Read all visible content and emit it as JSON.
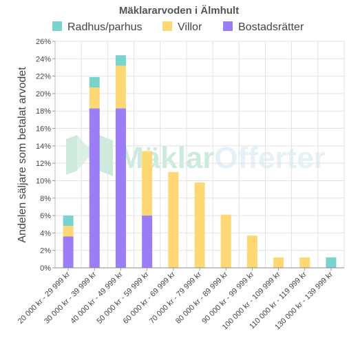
{
  "chart_data": {
    "type": "bar",
    "stacked": true,
    "title": "Mäklararvoden i Älmhult",
    "xlabel": "",
    "ylabel": "Andelen säljare som betalat arvodet",
    "ylim": [
      0,
      26
    ],
    "y_tick_step": 2,
    "y_tick_suffix": "%",
    "grid": true,
    "legend_position": "top",
    "categories": [
      "20 000 kr - 29 999 kr",
      "30 000 kr - 39 999 kr",
      "40 000 kr - 49 999 kr",
      "50 000 kr - 59 999 kr",
      "60 000 kr - 69 999 kr",
      "70 000 kr - 79 999 kr",
      "80 000 kr - 89 999 kr",
      "90 000 kr - 99 999 kr",
      "100 000 kr - 109 999 kr",
      "110 000 kr - 119 999 kr",
      "130 000 kr - 139 999 kr"
    ],
    "series": [
      {
        "name": "Bostadsrätter",
        "color": "#9b7df5",
        "values": [
          3.6,
          18.3,
          18.3,
          6.0,
          0,
          0,
          0,
          0,
          0,
          0,
          0
        ]
      },
      {
        "name": "Villor",
        "color": "#fdd875",
        "values": [
          1.2,
          2.4,
          4.9,
          7.4,
          11.0,
          9.8,
          6.1,
          3.7,
          1.2,
          1.2,
          0
        ]
      },
      {
        "name": "Radhus/parhus",
        "color": "#7ad4ce",
        "values": [
          1.2,
          1.2,
          1.2,
          0,
          0,
          0,
          0,
          0,
          0,
          0,
          1.2
        ]
      }
    ],
    "legend_order": [
      "Radhus/parhus",
      "Villor",
      "Bostadsrätter"
    ]
  },
  "watermark": {
    "part1": "Mäklar",
    "part2": "Offerter",
    "color1": "#a6dcc0",
    "color2": "#cfe6f2"
  }
}
